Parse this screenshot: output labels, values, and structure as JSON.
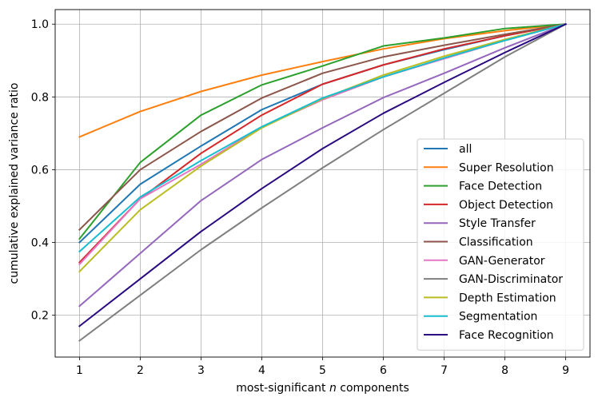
{
  "chart_data": {
    "type": "line",
    "title": "",
    "xlabel_prefix": "most-significant ",
    "xlabel_var": "n",
    "xlabel_suffix": " components",
    "ylabel": "cumulative explained variance ratio",
    "x": [
      1,
      2,
      3,
      4,
      5,
      6,
      7,
      8,
      9
    ],
    "xlim": [
      0.6,
      9.4
    ],
    "ylim": [
      0.085,
      1.04
    ],
    "xticks": [
      "1",
      "2",
      "3",
      "4",
      "5",
      "6",
      "7",
      "8",
      "9"
    ],
    "yticks": [
      0.2,
      0.4,
      0.6,
      0.8,
      1.0
    ],
    "ytick_labels": [
      "0.2",
      "0.4",
      "0.6",
      "0.8",
      "1.0"
    ],
    "grid": true,
    "legend_position": "lower-right",
    "series": [
      {
        "name": "all",
        "color": "#1f77b4",
        "values": [
          0.4,
          0.56,
          0.665,
          0.765,
          0.835,
          0.888,
          0.93,
          0.968,
          1.0
        ]
      },
      {
        "name": "Super Resolution",
        "color": "#ff7f0e",
        "values": [
          0.69,
          0.76,
          0.815,
          0.86,
          0.897,
          0.932,
          0.96,
          0.982,
          1.0
        ]
      },
      {
        "name": "Face Detection",
        "color": "#2ca02c",
        "values": [
          0.41,
          0.62,
          0.75,
          0.833,
          0.885,
          0.94,
          0.962,
          0.988,
          1.0
        ]
      },
      {
        "name": "Object Detection",
        "color": "#d62728",
        "values": [
          0.345,
          0.52,
          0.645,
          0.75,
          0.835,
          0.888,
          0.932,
          0.968,
          1.0
        ]
      },
      {
        "name": "Style Transfer",
        "color": "#9467bd",
        "values": [
          0.225,
          0.37,
          0.515,
          0.628,
          0.715,
          0.798,
          0.865,
          0.935,
          1.0
        ]
      },
      {
        "name": "Classification",
        "color": "#8c564b",
        "values": [
          0.435,
          0.6,
          0.705,
          0.797,
          0.865,
          0.91,
          0.942,
          0.972,
          1.0
        ]
      },
      {
        "name": "GAN-Generator",
        "color": "#e377c2",
        "values": [
          0.34,
          0.52,
          0.615,
          0.717,
          0.792,
          0.855,
          0.905,
          0.955,
          1.0
        ]
      },
      {
        "name": "GAN-Discriminator",
        "color": "#7f7f7f",
        "values": [
          0.13,
          0.255,
          0.38,
          0.495,
          0.605,
          0.71,
          0.81,
          0.91,
          1.0
        ]
      },
      {
        "name": "Depth Estimation",
        "color": "#bcbd22",
        "values": [
          0.32,
          0.49,
          0.61,
          0.715,
          0.795,
          0.86,
          0.912,
          0.958,
          1.0
        ]
      },
      {
        "name": "Segmentation",
        "color": "#17becf",
        "values": [
          0.375,
          0.525,
          0.625,
          0.718,
          0.797,
          0.855,
          0.907,
          0.955,
          1.0
        ]
      },
      {
        "name": "Face Recognition",
        "color": "#2a0a80",
        "values": [
          0.17,
          0.3,
          0.43,
          0.548,
          0.658,
          0.755,
          0.84,
          0.922,
          1.0
        ]
      }
    ]
  }
}
